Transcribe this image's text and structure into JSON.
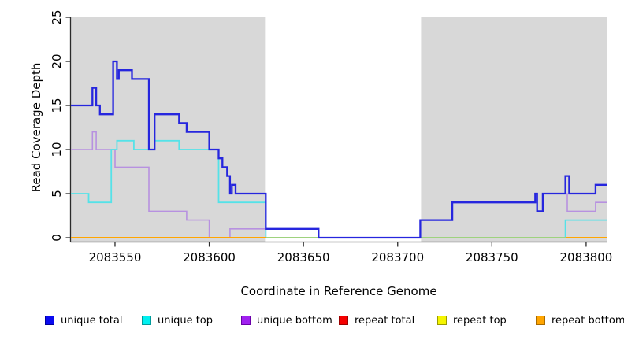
{
  "chart_data": {
    "type": "line",
    "subtype": "step-after",
    "title": "",
    "xlabel": "Coordinate in Reference Genome",
    "ylabel": "Read Coverage Depth",
    "xlim": [
      2083526.6,
      2083810.9
    ],
    "ylim": [
      0,
      25
    ],
    "x_ticks": [
      2083550,
      2083600,
      2083650,
      2083700,
      2083750,
      2083800
    ],
    "y_ticks": [
      0,
      5,
      10,
      15,
      20,
      25
    ],
    "grid": false,
    "legend_position": "bottom",
    "region_color": "#D8D8D8",
    "shaded_regions": [
      {
        "start": 2083526.6,
        "end": 2083629.6
      },
      {
        "start": 2083712.4,
        "end": 2083810.9
      }
    ],
    "series": [
      {
        "name": "unique total",
        "line_color": "#2626DE",
        "width": 2.3,
        "steps": [
          [
            2083526.6,
            15
          ],
          [
            2083538,
            17
          ],
          [
            2083540,
            15
          ],
          [
            2083542,
            14
          ],
          [
            2083549,
            20
          ],
          [
            2083551,
            18
          ],
          [
            2083552,
            19
          ],
          [
            2083559,
            18
          ],
          [
            2083568,
            10
          ],
          [
            2083571,
            14
          ],
          [
            2083584,
            13
          ],
          [
            2083588,
            12
          ],
          [
            2083600,
            10
          ],
          [
            2083605,
            9
          ],
          [
            2083607,
            8
          ],
          [
            2083609.5,
            7
          ],
          [
            2083611,
            5
          ],
          [
            2083612,
            6
          ],
          [
            2083614,
            5
          ],
          [
            2083630,
            1
          ],
          [
            2083658,
            0
          ],
          [
            2083712,
            2
          ],
          [
            2083729,
            4
          ],
          [
            2083773,
            5
          ],
          [
            2083774,
            3
          ],
          [
            2083777,
            5
          ],
          [
            2083789,
            7
          ],
          [
            2083791,
            5
          ],
          [
            2083805,
            6
          ]
        ]
      },
      {
        "name": "unique top",
        "line_color": "#55E2E8",
        "width": 1.8,
        "steps": [
          [
            2083526.6,
            5
          ],
          [
            2083536,
            4
          ],
          [
            2083548,
            10
          ],
          [
            2083551,
            11
          ],
          [
            2083560,
            10
          ],
          [
            2083571,
            11
          ],
          [
            2083584,
            10
          ],
          [
            2083605,
            4
          ],
          [
            2083630,
            0
          ],
          [
            2083789,
            2
          ]
        ]
      },
      {
        "name": "unique bottom",
        "line_color": "#B791E0",
        "width": 1.6,
        "steps": [
          [
            2083526.6,
            10
          ],
          [
            2083538,
            12
          ],
          [
            2083540,
            10
          ],
          [
            2083550,
            8
          ],
          [
            2083568,
            3
          ],
          [
            2083588,
            2
          ],
          [
            2083600,
            0
          ],
          [
            2083611,
            1
          ],
          [
            2083630,
            0
          ],
          [
            2083712,
            2
          ],
          [
            2083729,
            4
          ],
          [
            2083773,
            5
          ],
          [
            2083774,
            3
          ],
          [
            2083777,
            5
          ],
          [
            2083790,
            3
          ],
          [
            2083805,
            4
          ]
        ]
      },
      {
        "name": "repeat total",
        "line_color": "#DD0000",
        "width": 1.6,
        "steps": [
          [
            2083526.6,
            0
          ]
        ]
      },
      {
        "name": "repeat top",
        "line_color": "#F5F500",
        "width": 1.6,
        "steps": [
          [
            2083526.6,
            0
          ]
        ]
      },
      {
        "name": "repeat bottom",
        "line_color": "#FFA500",
        "width": 2,
        "steps": [
          [
            2083526.6,
            0
          ]
        ]
      }
    ],
    "zero_line_blend_segment": {
      "color": "#90D890",
      "start": 2083630,
      "end": 2083789.5,
      "value": 0
    },
    "draw_order": [
      "repeat total",
      "repeat top",
      "unique bottom",
      "unique top",
      "repeat bottom",
      "zero_blend",
      "unique total"
    ]
  },
  "legend": {
    "items": [
      {
        "label": "unique total",
        "fill": "#0A0AF0",
        "border": "#00009B"
      },
      {
        "label": "unique top",
        "fill": "#00F0F0",
        "border": "#009B9B"
      },
      {
        "label": "unique bottom",
        "fill": "#A021F0",
        "border": "#6A00A8"
      },
      {
        "label": "repeat total",
        "fill": "#F50000",
        "border": "#9B0000"
      },
      {
        "label": "repeat top",
        "fill": "#F5F500",
        "border": "#9B9B00"
      },
      {
        "label": "repeat bottom",
        "fill": "#FFA500",
        "border": "#A86A00"
      }
    ]
  }
}
